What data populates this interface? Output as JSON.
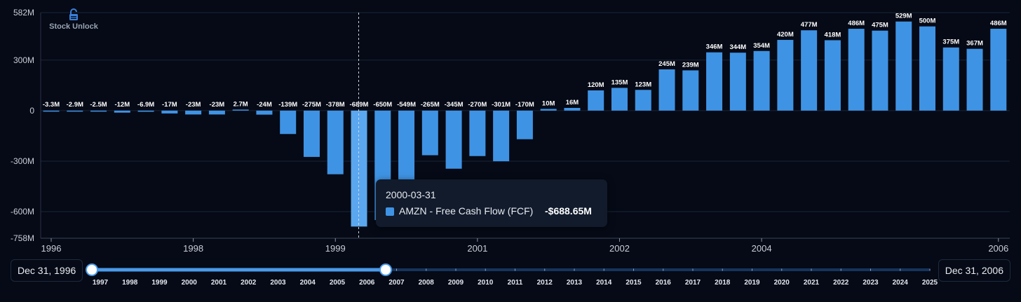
{
  "brand": {
    "name": "Stock Unlock",
    "icon": "lock-icon",
    "color": "#3b7fd9"
  },
  "colors": {
    "bar": "#3f93e4",
    "background": "#050a16",
    "grid": "#1b2436",
    "axis_text": "#c9ced8",
    "label_text": "#ffffff"
  },
  "tooltip": {
    "date": "2000-03-31",
    "series_label": "AMZN - Free Cash Flow (FCF)",
    "value": "-$688.65M"
  },
  "chart_data": {
    "type": "bar",
    "series_name": "AMZN - Free Cash Flow (FCF)",
    "units": "USD millions",
    "ylim": [
      -758,
      582
    ],
    "yticks": [
      {
        "value": 582,
        "label": "582M"
      },
      {
        "value": 300,
        "label": "300M"
      },
      {
        "value": 0,
        "label": "0"
      },
      {
        "value": -300,
        "label": "-300M"
      },
      {
        "value": -600,
        "label": "-600M"
      },
      {
        "value": -758,
        "label": "-758M"
      }
    ],
    "xticks": [
      {
        "index": 0,
        "label": "1996"
      },
      {
        "index": 6,
        "label": "1998"
      },
      {
        "index": 12,
        "label": "1999"
      },
      {
        "index": 18,
        "label": "2001"
      },
      {
        "index": 24,
        "label": "2002"
      },
      {
        "index": 30,
        "label": "2004"
      },
      {
        "index": 40,
        "label": "2006"
      }
    ],
    "highlight_index": 13,
    "values": [
      -3.3,
      -2.9,
      -2.5,
      -12,
      -6.9,
      -17,
      -23,
      -23,
      2.7,
      -24,
      -139,
      -275,
      -378,
      -688.65,
      -650,
      -549,
      -265,
      -345,
      -270,
      -301,
      -170,
      10,
      16,
      120,
      135,
      123,
      245,
      239,
      346,
      344,
      354,
      420,
      477,
      418,
      486,
      475,
      529,
      500,
      375,
      367,
      486
    ],
    "labels": [
      "-3.3M",
      "-2.9M",
      "-2.5M",
      "-12M",
      "-6.9M",
      "-17M",
      "-23M",
      "-23M",
      "2.7M",
      "-24M",
      "-139M",
      "-275M",
      "-378M",
      "-689M",
      "-650M",
      "-549M",
      "-265M",
      "-345M",
      "-270M",
      "-301M",
      "-170M",
      "10M",
      "16M",
      "120M",
      "135M",
      "123M",
      "245M",
      "239M",
      "346M",
      "344M",
      "354M",
      "420M",
      "477M",
      "418M",
      "486M",
      "475M",
      "529M",
      "500M",
      "375M",
      "367M",
      "486M"
    ]
  },
  "range_slider": {
    "start_label": "Dec 31, 1996",
    "end_label": "Dec 31, 2006",
    "years": [
      "1997",
      "1998",
      "1999",
      "2000",
      "2001",
      "2002",
      "2003",
      "2004",
      "2005",
      "2006",
      "2007",
      "2008",
      "2009",
      "2010",
      "2011",
      "2012",
      "2013",
      "2014",
      "2015",
      "2016",
      "2017",
      "2018",
      "2019",
      "2020",
      "2021",
      "2022",
      "2023",
      "2024",
      "2025"
    ],
    "start_year": "1997",
    "end_year": "2006"
  }
}
